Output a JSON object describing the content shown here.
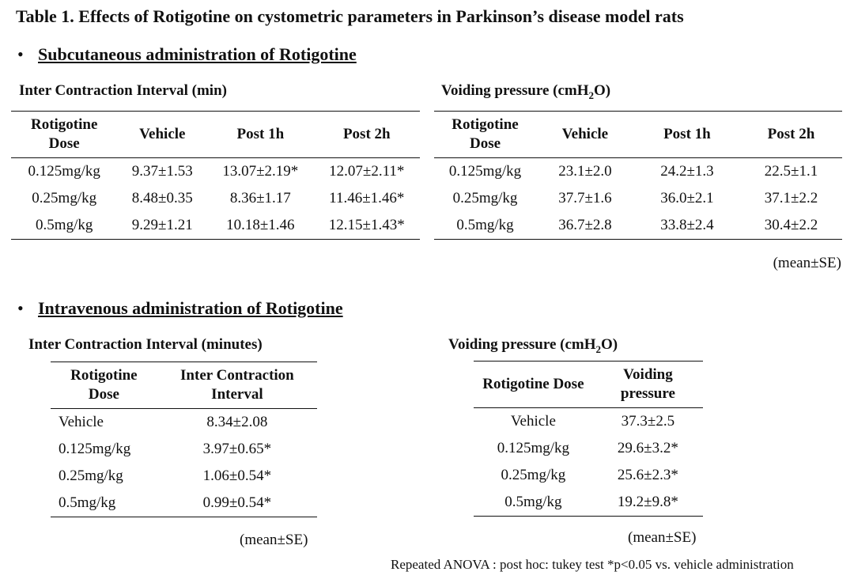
{
  "title": "Table 1. Effects of Rotigotine on cystometric parameters in Parkinson’s disease model rats",
  "bullet": "•",
  "subcutaneous": {
    "heading": "Subcutaneous administration of Rotigotine",
    "ici": {
      "caption": "Inter Contraction Interval (min)",
      "columns": [
        "Rotigotine Dose",
        "Vehicle",
        "Post 1h",
        "Post 2h"
      ],
      "rows": [
        [
          "0.125mg/kg",
          "9.37±1.53",
          "13.07±2.19*",
          "12.07±2.11*"
        ],
        [
          "0.25mg/kg",
          "8.48±0.35",
          "8.36±1.17",
          "11.46±1.46*"
        ],
        [
          "0.5mg/kg",
          "9.29±1.21",
          "10.18±1.46",
          "12.15±1.43*"
        ]
      ]
    },
    "vp": {
      "caption_main": "Voiding pressure (cmH",
      "caption_sub": "2",
      "caption_end": "O)",
      "columns": [
        "Rotigotine Dose",
        "Vehicle",
        "Post 1h",
        "Post 2h"
      ],
      "rows": [
        [
          "0.125mg/kg",
          "23.1±2.0",
          "24.2±1.3",
          "22.5±1.1"
        ],
        [
          "0.25mg/kg",
          "37.7±1.6",
          "36.0±2.1",
          "37.1±2.2"
        ],
        [
          "0.5mg/kg",
          "36.7±2.8",
          "33.8±2.4",
          "30.4±2.2"
        ]
      ],
      "note": "(mean±SE)"
    }
  },
  "intravenous": {
    "heading": "Intravenous administration of Rotigotine",
    "ici": {
      "caption": "Inter Contraction Interval (minutes)",
      "columns": [
        "Rotigotine Dose",
        "Inter Contraction Interval"
      ],
      "rows": [
        [
          "Vehicle",
          "8.34±2.08"
        ],
        [
          "0.125mg/kg",
          "3.97±0.65*"
        ],
        [
          "0.25mg/kg",
          "1.06±0.54*"
        ],
        [
          "0.5mg/kg",
          "0.99±0.54*"
        ]
      ],
      "note": "(mean±SE)"
    },
    "vp": {
      "caption_main": "Voiding pressure (cmH",
      "caption_sub": "2",
      "caption_end": "O)",
      "columns": [
        "Rotigotine Dose",
        "Voiding pressure"
      ],
      "rows": [
        [
          "Vehicle",
          "37.3±2.5"
        ],
        [
          "0.125mg/kg",
          "29.6±3.2*"
        ],
        [
          "0.25mg/kg",
          "25.6±2.3*"
        ],
        [
          "0.5mg/kg",
          "19.2±9.8*"
        ]
      ],
      "note": "(mean±SE)"
    }
  },
  "footnote": "Repeated ANOVA : post hoc: tukey test *p<0.05 vs. vehicle administration"
}
